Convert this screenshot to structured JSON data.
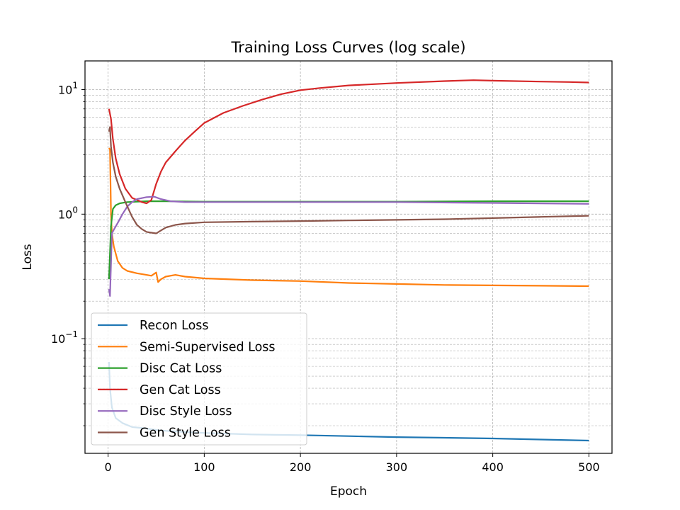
{
  "chart_data": {
    "type": "line",
    "title": "Training Loss Curves (log scale)",
    "xlabel": "Epoch",
    "ylabel": "Loss",
    "xlim": [
      -24,
      524
    ],
    "ylim": [
      0.012,
      17
    ],
    "yscale": "log",
    "grid": true,
    "legend_position": "lower-left",
    "x_ticks": [
      0,
      100,
      200,
      300,
      400,
      500
    ],
    "x_tick_labels": [
      "0",
      "100",
      "200",
      "300",
      "400",
      "500"
    ],
    "y_ticks": [
      0.1,
      1,
      10
    ],
    "y_tick_labels": [
      {
        "base": "10",
        "exp": "−1"
      },
      {
        "base": "10",
        "exp": "0"
      },
      {
        "base": "10",
        "exp": "1"
      }
    ],
    "series": [
      {
        "name": "Recon Loss",
        "color": "#1f77b4",
        "points": [
          [
            1,
            0.065
          ],
          [
            2,
            0.04
          ],
          [
            4,
            0.028
          ],
          [
            8,
            0.023
          ],
          [
            15,
            0.021
          ],
          [
            25,
            0.0195
          ],
          [
            40,
            0.019
          ],
          [
            50,
            0.0185
          ],
          [
            60,
            0.0182
          ],
          [
            80,
            0.0178
          ],
          [
            100,
            0.0175
          ],
          [
            150,
            0.017
          ],
          [
            200,
            0.0168
          ],
          [
            250,
            0.0165
          ],
          [
            300,
            0.0162
          ],
          [
            350,
            0.016
          ],
          [
            400,
            0.0158
          ],
          [
            450,
            0.0155
          ],
          [
            500,
            0.0152
          ]
        ]
      },
      {
        "name": "Semi-Supervised Loss",
        "color": "#ff7f0e",
        "points": [
          [
            1,
            3.4
          ],
          [
            2,
            3.3
          ],
          [
            3,
            1.0
          ],
          [
            4,
            0.7
          ],
          [
            6,
            0.55
          ],
          [
            10,
            0.42
          ],
          [
            15,
            0.37
          ],
          [
            20,
            0.35
          ],
          [
            30,
            0.335
          ],
          [
            40,
            0.325
          ],
          [
            45,
            0.32
          ],
          [
            50,
            0.34
          ],
          [
            52,
            0.285
          ],
          [
            55,
            0.3
          ],
          [
            60,
            0.315
          ],
          [
            70,
            0.325
          ],
          [
            80,
            0.315
          ],
          [
            100,
            0.305
          ],
          [
            150,
            0.295
          ],
          [
            200,
            0.29
          ],
          [
            250,
            0.28
          ],
          [
            300,
            0.275
          ],
          [
            350,
            0.27
          ],
          [
            400,
            0.268
          ],
          [
            450,
            0.266
          ],
          [
            500,
            0.264
          ]
        ]
      },
      {
        "name": "Disc Cat Loss",
        "color": "#2ca02c",
        "points": [
          [
            1,
            0.3
          ],
          [
            3,
            0.8
          ],
          [
            5,
            1.1
          ],
          [
            8,
            1.18
          ],
          [
            12,
            1.22
          ],
          [
            20,
            1.25
          ],
          [
            40,
            1.27
          ],
          [
            60,
            1.27
          ],
          [
            100,
            1.26
          ],
          [
            200,
            1.26
          ],
          [
            300,
            1.26
          ],
          [
            400,
            1.27
          ],
          [
            500,
            1.27
          ]
        ]
      },
      {
        "name": "Gen Cat Loss",
        "color": "#d62728",
        "points": [
          [
            1,
            7.0
          ],
          [
            3,
            5.8
          ],
          [
            5,
            4.0
          ],
          [
            8,
            2.8
          ],
          [
            12,
            2.1
          ],
          [
            18,
            1.6
          ],
          [
            25,
            1.35
          ],
          [
            30,
            1.3
          ],
          [
            35,
            1.25
          ],
          [
            40,
            1.22
          ],
          [
            45,
            1.3
          ],
          [
            50,
            1.75
          ],
          [
            55,
            2.2
          ],
          [
            60,
            2.6
          ],
          [
            70,
            3.2
          ],
          [
            80,
            3.9
          ],
          [
            90,
            4.6
          ],
          [
            100,
            5.4
          ],
          [
            120,
            6.5
          ],
          [
            140,
            7.4
          ],
          [
            160,
            8.3
          ],
          [
            180,
            9.2
          ],
          [
            200,
            9.9
          ],
          [
            220,
            10.3
          ],
          [
            250,
            10.8
          ],
          [
            300,
            11.3
          ],
          [
            350,
            11.7
          ],
          [
            380,
            11.9
          ],
          [
            400,
            11.8
          ],
          [
            450,
            11.6
          ],
          [
            480,
            11.5
          ],
          [
            500,
            11.4
          ]
        ]
      },
      {
        "name": "Disc Style Loss",
        "color": "#9467bd",
        "points": [
          [
            1,
            0.25
          ],
          [
            2,
            0.22
          ],
          [
            3,
            0.4
          ],
          [
            4,
            0.7
          ],
          [
            6,
            0.75
          ],
          [
            10,
            0.85
          ],
          [
            15,
            1.0
          ],
          [
            20,
            1.15
          ],
          [
            25,
            1.25
          ],
          [
            30,
            1.32
          ],
          [
            40,
            1.37
          ],
          [
            48,
            1.38
          ],
          [
            55,
            1.32
          ],
          [
            65,
            1.27
          ],
          [
            80,
            1.25
          ],
          [
            100,
            1.25
          ],
          [
            200,
            1.25
          ],
          [
            300,
            1.25
          ],
          [
            400,
            1.23
          ],
          [
            500,
            1.21
          ]
        ]
      },
      {
        "name": "Gen Style Loss",
        "color": "#8c564b",
        "points": [
          [
            1,
            4.6
          ],
          [
            2,
            5.0
          ],
          [
            3,
            3.5
          ],
          [
            5,
            2.6
          ],
          [
            8,
            2.0
          ],
          [
            12,
            1.6
          ],
          [
            18,
            1.25
          ],
          [
            25,
            0.95
          ],
          [
            30,
            0.82
          ],
          [
            35,
            0.76
          ],
          [
            40,
            0.72
          ],
          [
            45,
            0.71
          ],
          [
            50,
            0.7
          ],
          [
            55,
            0.74
          ],
          [
            60,
            0.78
          ],
          [
            70,
            0.82
          ],
          [
            80,
            0.84
          ],
          [
            100,
            0.86
          ],
          [
            150,
            0.87
          ],
          [
            200,
            0.88
          ],
          [
            250,
            0.89
          ],
          [
            300,
            0.9
          ],
          [
            350,
            0.91
          ],
          [
            400,
            0.93
          ],
          [
            450,
            0.95
          ],
          [
            500,
            0.97
          ]
        ]
      }
    ]
  }
}
